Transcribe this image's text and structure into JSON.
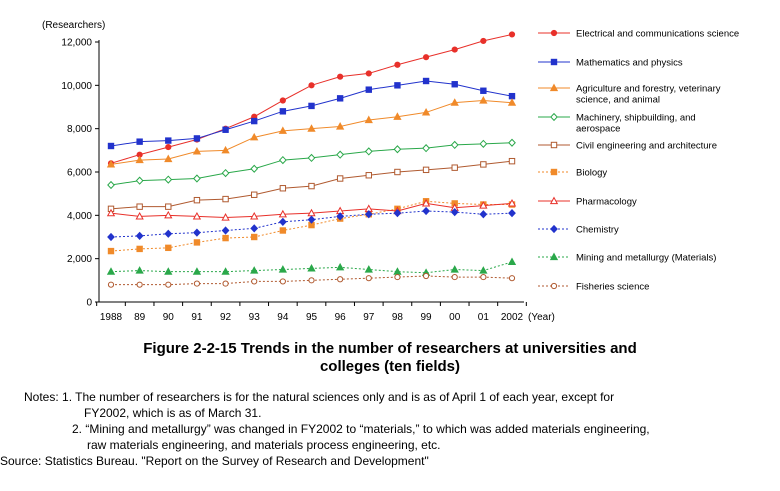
{
  "chart_data": {
    "type": "line",
    "y_unit": "(Researchers)",
    "x_unit": "(Year)",
    "ylim": [
      0,
      12000
    ],
    "yticks": [
      0,
      2000,
      4000,
      6000,
      8000,
      10000,
      12000
    ],
    "ytick_labels": [
      "0",
      "2,000",
      "4,000",
      "6,000",
      "8,000",
      "10,000",
      "12,000"
    ],
    "categories": [
      "1988",
      "89",
      "90",
      "91",
      "92",
      "93",
      "94",
      "95",
      "96",
      "97",
      "98",
      "99",
      "00",
      "01",
      "2002"
    ],
    "grid": false,
    "legend_position": "right",
    "series": [
      {
        "name": "Electrical and communications science",
        "color": "#e8302a",
        "marker": "circle",
        "fill": true,
        "dash": false,
        "values": [
          6400,
          6800,
          7150,
          7500,
          8000,
          8550,
          9300,
          10000,
          10400,
          10550,
          10950,
          11300,
          11650,
          12050,
          12350
        ]
      },
      {
        "name": "Mathematics and physics",
        "color": "#2233cc",
        "marker": "square",
        "fill": true,
        "dash": false,
        "values": [
          7200,
          7400,
          7450,
          7550,
          7950,
          8350,
          8800,
          9050,
          9400,
          9800,
          10000,
          10200,
          10050,
          9750,
          9500
        ]
      },
      {
        "name": "Agriculture and forestry, veterinary science, and animal",
        "color": "#f08a2a",
        "marker": "triangle",
        "fill": true,
        "dash": false,
        "values": [
          6350,
          6550,
          6600,
          6950,
          7000,
          7600,
          7900,
          8000,
          8100,
          8400,
          8550,
          8750,
          9200,
          9300,
          9200
        ]
      },
      {
        "name": "Machinery, shipbuilding, and aerospace",
        "color": "#2aa84a",
        "marker": "diamond",
        "fill": false,
        "dash": false,
        "values": [
          5400,
          5600,
          5650,
          5700,
          5950,
          6150,
          6550,
          6650,
          6800,
          6950,
          7050,
          7100,
          7250,
          7300,
          7350
        ]
      },
      {
        "name": "Civil engineering and architecture",
        "color": "#b05a30",
        "marker": "square",
        "fill": false,
        "dash": false,
        "values": [
          4300,
          4400,
          4400,
          4700,
          4750,
          4950,
          5250,
          5350,
          5700,
          5850,
          6000,
          6100,
          6200,
          6350,
          6500
        ]
      },
      {
        "name": "Biology",
        "color": "#f08a2a",
        "marker": "square",
        "fill": true,
        "dash": true,
        "values": [
          2350,
          2450,
          2500,
          2750,
          2950,
          3000,
          3300,
          3550,
          3850,
          4050,
          4300,
          4650,
          4550,
          4500,
          4500
        ]
      },
      {
        "name": "Pharmacology",
        "color": "#e8302a",
        "marker": "triangle",
        "fill": false,
        "dash": false,
        "values": [
          4100,
          3950,
          4000,
          3950,
          3900,
          3950,
          4050,
          4100,
          4200,
          4300,
          4200,
          4550,
          4350,
          4450,
          4550
        ]
      },
      {
        "name": "Chemistry",
        "color": "#2233cc",
        "marker": "diamond",
        "fill": true,
        "dash": true,
        "values": [
          3000,
          3050,
          3150,
          3200,
          3300,
          3400,
          3700,
          3800,
          3950,
          4050,
          4100,
          4200,
          4150,
          4050,
          4100
        ]
      },
      {
        "name": "Mining and metallurgy (Materials)",
        "color": "#2aa84a",
        "marker": "triangle",
        "fill": true,
        "dash": true,
        "values": [
          1400,
          1450,
          1400,
          1400,
          1400,
          1450,
          1500,
          1550,
          1600,
          1500,
          1400,
          1350,
          1500,
          1450,
          1850
        ]
      },
      {
        "name": "Fisheries science",
        "color": "#b05a30",
        "marker": "circle",
        "fill": false,
        "dash": true,
        "values": [
          800,
          800,
          800,
          850,
          850,
          950,
          950,
          1000,
          1050,
          1100,
          1150,
          1200,
          1150,
          1150,
          1100
        ]
      }
    ]
  },
  "legend_lines": [
    [
      "Electrical and communications science"
    ],
    [
      "Mathematics and physics"
    ],
    [
      "Agriculture and forestry, veterinary",
      "science, and animal"
    ],
    [
      "Machinery, shipbuilding, and",
      "aerospace"
    ],
    [
      "Civil engineering and architecture"
    ],
    [
      "Biology"
    ],
    [
      "Pharmacology"
    ],
    [
      "Chemistry"
    ],
    [
      "Mining and metallurgy (Materials)"
    ],
    [
      "Fisheries science"
    ]
  ],
  "caption": {
    "line1": "Figure 2-2-15  Trends in the number of researchers at universities and",
    "line2": "colleges (ten fields)"
  },
  "notes": {
    "n1a": "Notes: 1. The number of researchers is for the natural sciences only and is as of April 1 of each year, except for",
    "n1b": "FY2002, which is as of March 31.",
    "n2a": "2. “Mining and metallurgy” was changed in FY2002 to “materials,” to which was added materials engineering,",
    "n2b": "raw materials engineering, and materials process engineering, etc.",
    "source": "Source: Statistics Bureau. \"Report on the Survey of Research and Development\""
  }
}
